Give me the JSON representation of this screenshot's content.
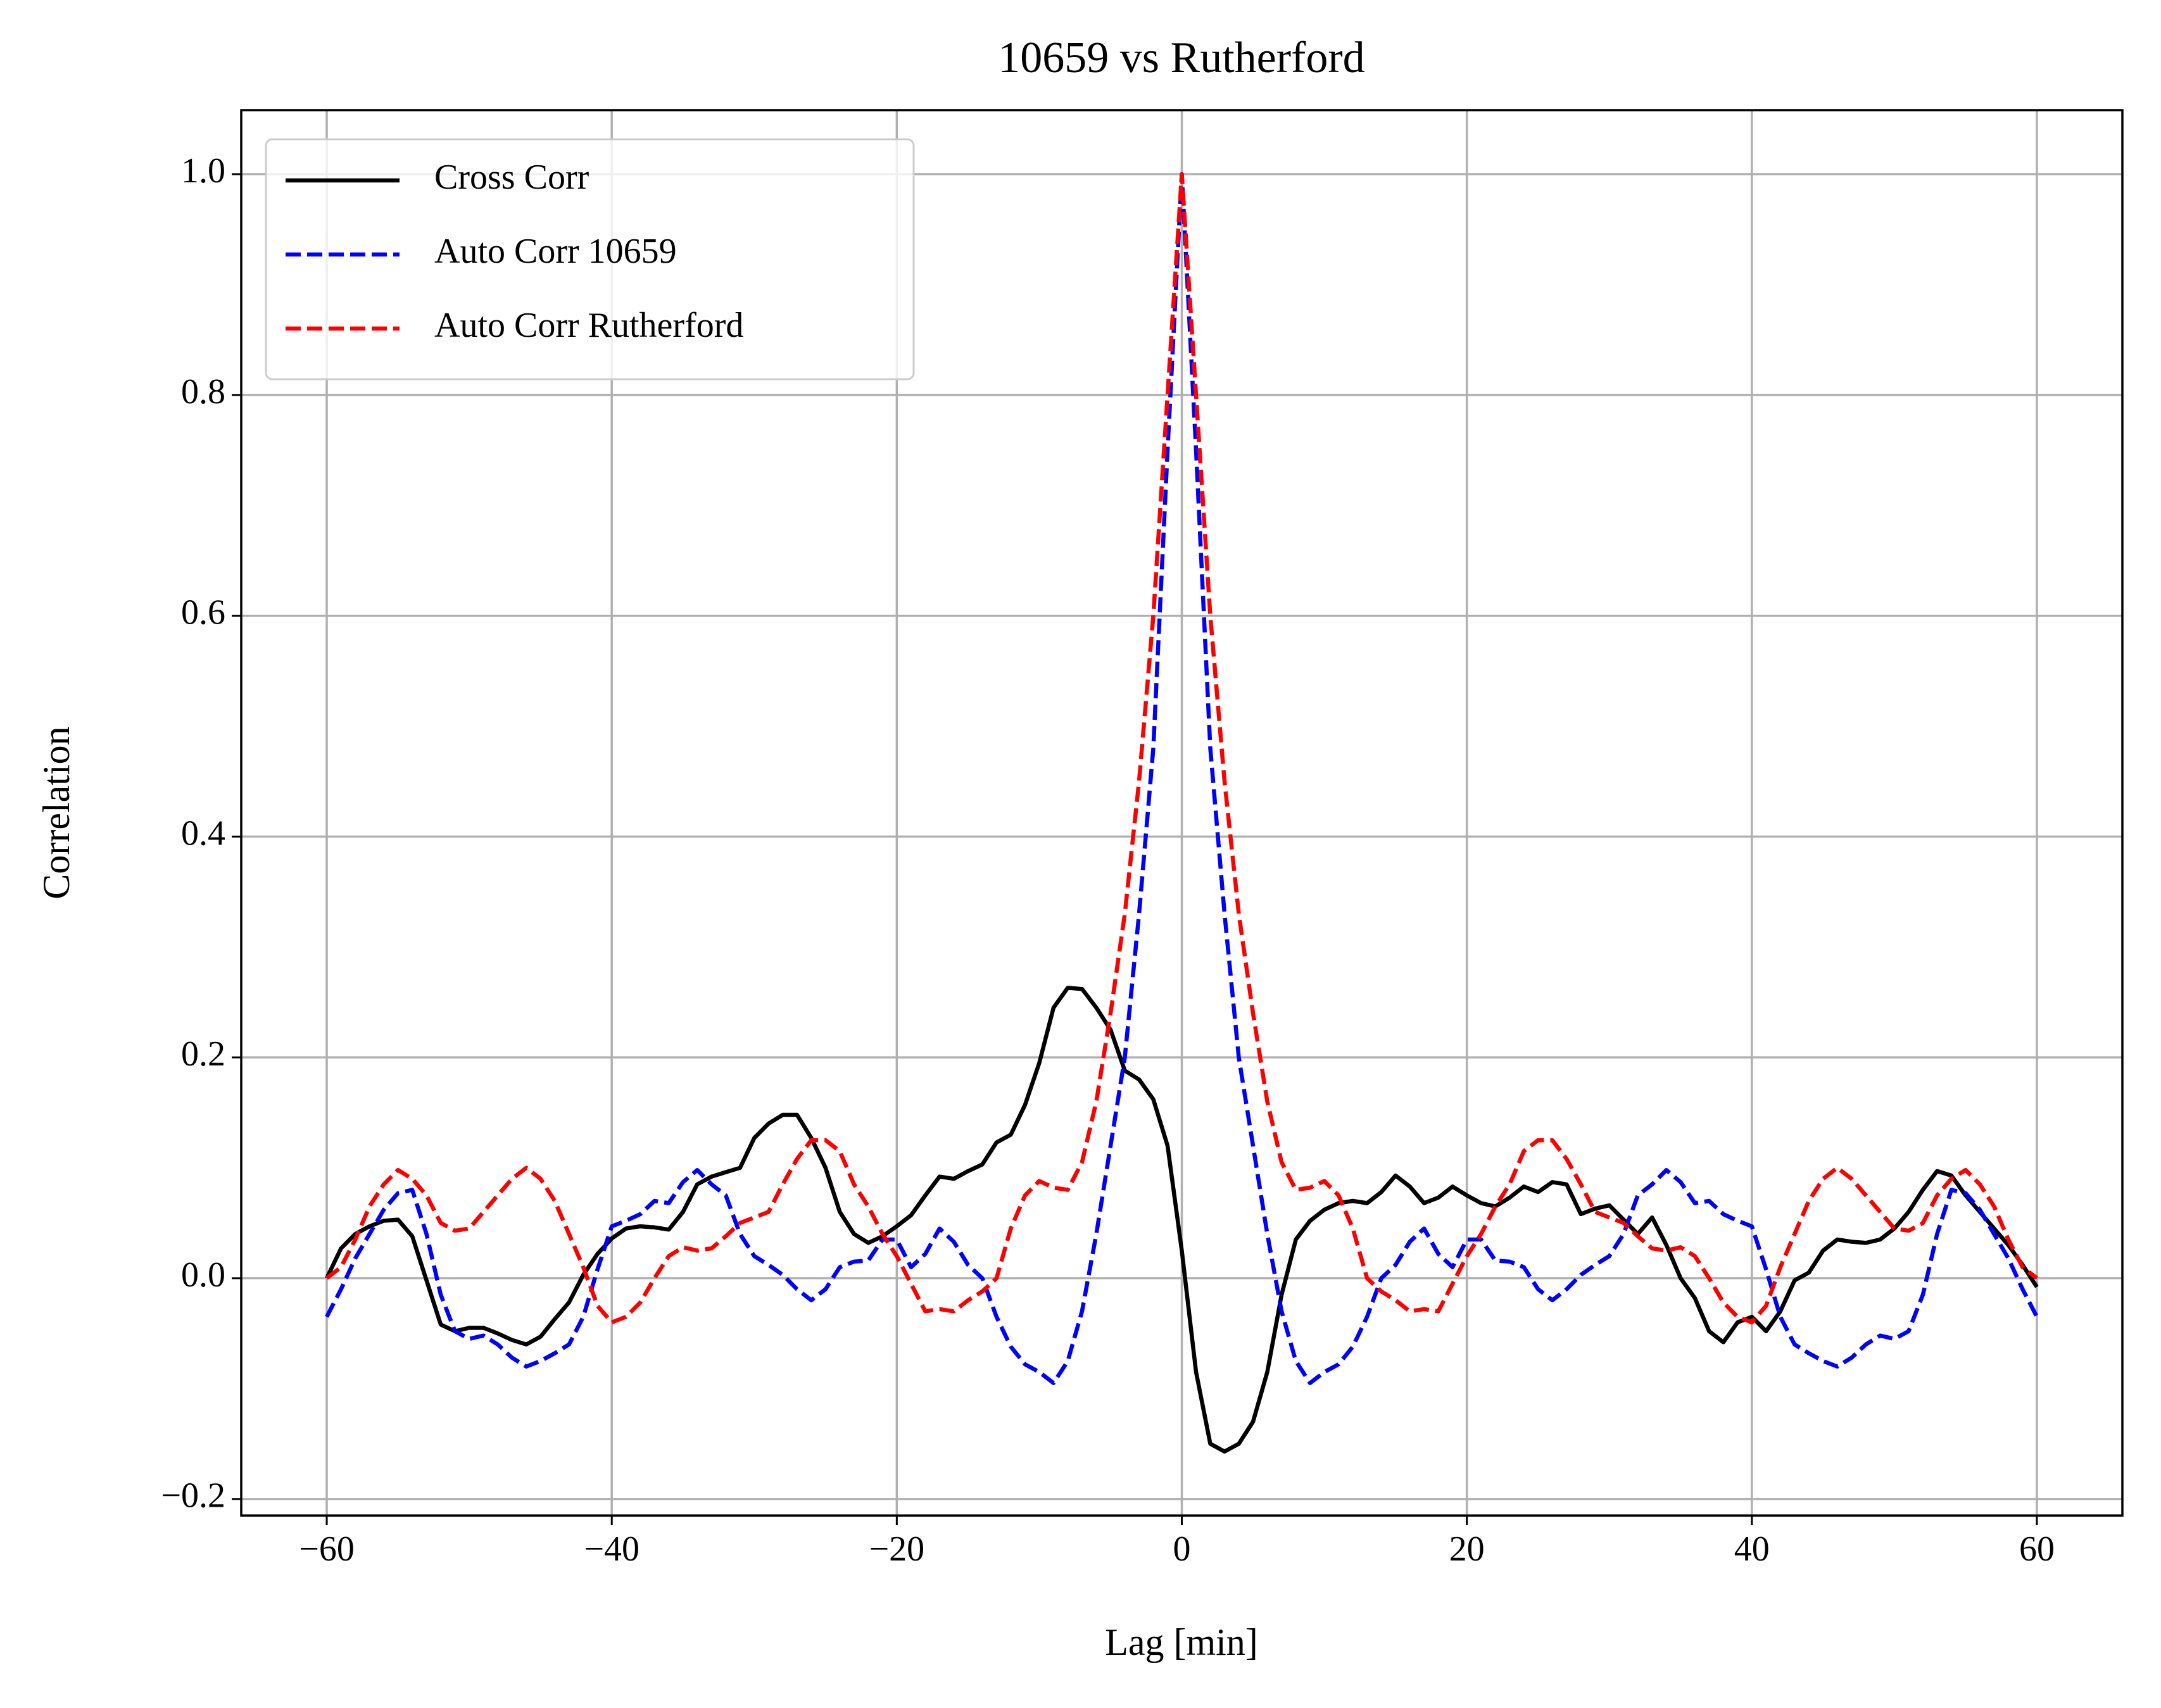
{
  "chart_data": {
    "type": "line",
    "title": "10659 vs Rutherford",
    "xlabel": "Lag [min]",
    "ylabel": "Correlation",
    "x": [
      -60,
      -59,
      -58,
      -57,
      -56,
      -55,
      -54,
      -53,
      -52,
      -51,
      -50,
      -49,
      -48,
      -47,
      -46,
      -45,
      -44,
      -43,
      -42,
      -41,
      -40,
      -39,
      -38,
      -37,
      -36,
      -35,
      -34,
      -33,
      -32,
      -31,
      -30,
      -29,
      -28,
      -27,
      -26,
      -25,
      -24,
      -23,
      -22,
      -21,
      -20,
      -19,
      -18,
      -17,
      -16,
      -15,
      -14,
      -13,
      -12,
      -11,
      -10,
      -9,
      -8,
      -7,
      -6,
      -5,
      -4,
      -3,
      -2,
      -1,
      0,
      1,
      2,
      3,
      4,
      5,
      6,
      7,
      8,
      9,
      10,
      11,
      12,
      13,
      14,
      15,
      16,
      17,
      18,
      19,
      20,
      21,
      22,
      23,
      24,
      25,
      26,
      27,
      28,
      29,
      30,
      31,
      32,
      33,
      34,
      35,
      36,
      37,
      38,
      39,
      40,
      41,
      42,
      43,
      44,
      45,
      46,
      47,
      48,
      49,
      50,
      51,
      52,
      53,
      54,
      55,
      56,
      57,
      58,
      59,
      60
    ],
    "series": [
      {
        "name": "Cross Corr",
        "color": "#000000",
        "linestyle": "solid",
        "values": [
          0.0,
          0.027,
          0.04,
          0.047,
          0.052,
          0.053,
          0.038,
          -0.002,
          -0.042,
          -0.048,
          -0.045,
          -0.045,
          -0.05,
          -0.056,
          -0.06,
          -0.053,
          -0.037,
          -0.022,
          0.003,
          0.022,
          0.036,
          0.045,
          0.047,
          0.046,
          0.044,
          0.06,
          0.085,
          0.092,
          0.096,
          0.1,
          0.127,
          0.14,
          0.148,
          0.148,
          0.127,
          0.1,
          0.06,
          0.04,
          0.032,
          0.038,
          0.047,
          0.057,
          0.075,
          0.092,
          0.09,
          0.097,
          0.103,
          0.123,
          0.13,
          0.157,
          0.195,
          0.245,
          0.263,
          0.262,
          0.245,
          0.225,
          0.188,
          0.18,
          0.162,
          0.12,
          0.025,
          -0.085,
          -0.15,
          -0.157,
          -0.15,
          -0.13,
          -0.085,
          -0.015,
          0.035,
          0.052,
          0.062,
          0.068,
          0.07,
          0.068,
          0.078,
          0.093,
          0.083,
          0.068,
          0.073,
          0.083,
          0.075,
          0.068,
          0.065,
          0.073,
          0.083,
          0.078,
          0.087,
          0.085,
          0.058,
          0.063,
          0.066,
          0.053,
          0.04,
          0.055,
          0.03,
          0.0,
          -0.018,
          -0.048,
          -0.058,
          -0.04,
          -0.035,
          -0.048,
          -0.03,
          -0.002,
          0.005,
          0.025,
          0.035,
          0.033,
          0.032,
          0.035,
          0.045,
          0.06,
          0.08,
          0.097,
          0.093,
          0.075,
          0.06,
          0.045,
          0.03,
          0.012,
          -0.008
        ]
      },
      {
        "name": "Auto Corr 10659",
        "color": "#0000ff",
        "linestyle": "dashed",
        "values": [
          -0.035,
          -0.01,
          0.018,
          0.04,
          0.062,
          0.077,
          0.08,
          0.04,
          -0.015,
          -0.048,
          -0.055,
          -0.052,
          -0.06,
          -0.072,
          -0.08,
          -0.075,
          -0.068,
          -0.06,
          -0.035,
          0.008,
          0.047,
          0.052,
          0.058,
          0.07,
          0.068,
          0.087,
          0.098,
          0.085,
          0.075,
          0.04,
          0.02,
          0.012,
          0.003,
          -0.01,
          -0.02,
          -0.01,
          0.01,
          0.015,
          0.016,
          0.035,
          0.035,
          0.01,
          0.022,
          0.045,
          0.033,
          0.012,
          0.0,
          -0.035,
          -0.062,
          -0.078,
          -0.085,
          -0.095,
          -0.075,
          -0.03,
          0.04,
          0.12,
          0.2,
          0.33,
          0.48,
          0.75,
          1.0,
          0.75,
          0.48,
          0.33,
          0.2,
          0.12,
          0.04,
          -0.03,
          -0.075,
          -0.095,
          -0.085,
          -0.078,
          -0.062,
          -0.035,
          0.0,
          0.012,
          0.033,
          0.045,
          0.022,
          0.01,
          0.035,
          0.035,
          0.016,
          0.015,
          0.01,
          -0.01,
          -0.02,
          -0.01,
          0.003,
          0.012,
          0.02,
          0.04,
          0.075,
          0.085,
          0.098,
          0.087,
          0.068,
          0.07,
          0.058,
          0.052,
          0.047,
          0.008,
          -0.035,
          -0.06,
          -0.068,
          -0.075,
          -0.08,
          -0.072,
          -0.06,
          -0.052,
          -0.055,
          -0.048,
          -0.015,
          0.04,
          0.08,
          0.077,
          0.062,
          0.04,
          0.018,
          -0.01,
          -0.035
        ]
      },
      {
        "name": "Auto Corr Rutherford",
        "color": "#ff0000",
        "linestyle": "dashed",
        "values": [
          0.0,
          0.01,
          0.035,
          0.065,
          0.085,
          0.098,
          0.09,
          0.075,
          0.05,
          0.043,
          0.045,
          0.06,
          0.075,
          0.09,
          0.1,
          0.09,
          0.07,
          0.04,
          0.01,
          -0.025,
          -0.04,
          -0.035,
          -0.022,
          0.0,
          0.02,
          0.028,
          0.025,
          0.027,
          0.038,
          0.05,
          0.055,
          0.06,
          0.085,
          0.108,
          0.125,
          0.125,
          0.115,
          0.085,
          0.065,
          0.04,
          0.02,
          -0.005,
          -0.03,
          -0.028,
          -0.03,
          -0.02,
          -0.012,
          0.0,
          0.045,
          0.075,
          0.088,
          0.082,
          0.08,
          0.105,
          0.16,
          0.24,
          0.33,
          0.45,
          0.6,
          0.8,
          1.0,
          0.8,
          0.6,
          0.45,
          0.33,
          0.24,
          0.16,
          0.105,
          0.08,
          0.082,
          0.088,
          0.075,
          0.045,
          0.0,
          -0.012,
          -0.02,
          -0.03,
          -0.028,
          -0.03,
          -0.005,
          0.02,
          0.04,
          0.065,
          0.085,
          0.115,
          0.125,
          0.125,
          0.108,
          0.085,
          0.06,
          0.055,
          0.05,
          0.038,
          0.027,
          0.025,
          0.028,
          0.02,
          0.0,
          -0.022,
          -0.035,
          -0.04,
          -0.025,
          0.01,
          0.04,
          0.07,
          0.09,
          0.1,
          0.09,
          0.075,
          0.06,
          0.045,
          0.043,
          0.05,
          0.075,
          0.09,
          0.098,
          0.085,
          0.065,
          0.035,
          0.01,
          0.0
        ]
      }
    ],
    "xlim": [
      -66,
      66
    ],
    "ylim": [
      -0.215,
      1.058
    ],
    "xticks": [
      {
        "value": -60,
        "label": "−60"
      },
      {
        "value": -40,
        "label": "−40"
      },
      {
        "value": -20,
        "label": "−20"
      },
      0,
      20,
      40,
      60
    ],
    "yticks": [
      {
        "value": -0.2,
        "label": "−0.2"
      },
      {
        "value": 0,
        "label": "0.0"
      },
      0.2,
      0.4,
      0.6,
      0.8,
      {
        "value": 1,
        "label": "1.0"
      }
    ],
    "grid": true,
    "legend": "upper left"
  }
}
